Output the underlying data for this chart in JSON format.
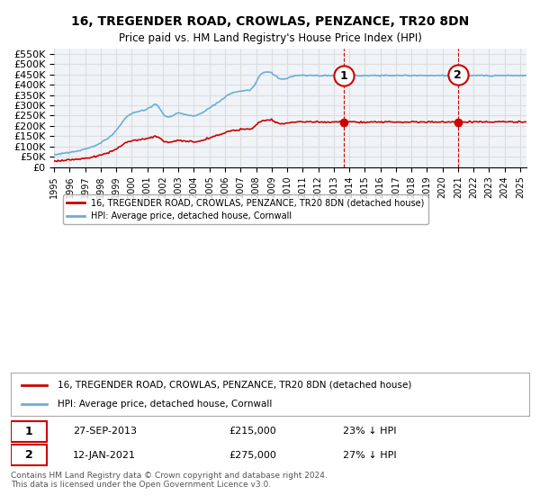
{
  "title": "16, TREGENDER ROAD, CROWLAS, PENZANCE, TR20 8DN",
  "subtitle": "Price paid vs. HM Land Registry's House Price Index (HPI)",
  "ylim": [
    0,
    575000
  ],
  "yticks": [
    0,
    50000,
    100000,
    150000,
    200000,
    250000,
    300000,
    350000,
    400000,
    450000,
    500000,
    550000
  ],
  "ytick_labels": [
    "£0",
    "£50K",
    "£100K",
    "£150K",
    "£200K",
    "£250K",
    "£300K",
    "£350K",
    "£400K",
    "£450K",
    "£500K",
    "£550K"
  ],
  "hpi_color": "#6baed6",
  "price_color": "#cc0000",
  "marker1_date_idx": 228,
  "marker1_price": 215000,
  "marker2_date_idx": 312,
  "marker2_price": 275000,
  "legend_line1": "16, TREGENDER ROAD, CROWLAS, PENZANCE, TR20 8DN (detached house)",
  "legend_line2": "HPI: Average price, detached house, Cornwall",
  "table_row1": "1    27-SEP-2013    £215,000    23% ↓ HPI",
  "table_row2": "2    12-JAN-2021    £275,000    27% ↓ HPI",
  "footer": "Contains HM Land Registry data © Crown copyright and database right 2024.\nThis data is licensed under the Open Government Licence v3.0.",
  "bg_color": "#ffffff",
  "grid_color": "#dddddd"
}
